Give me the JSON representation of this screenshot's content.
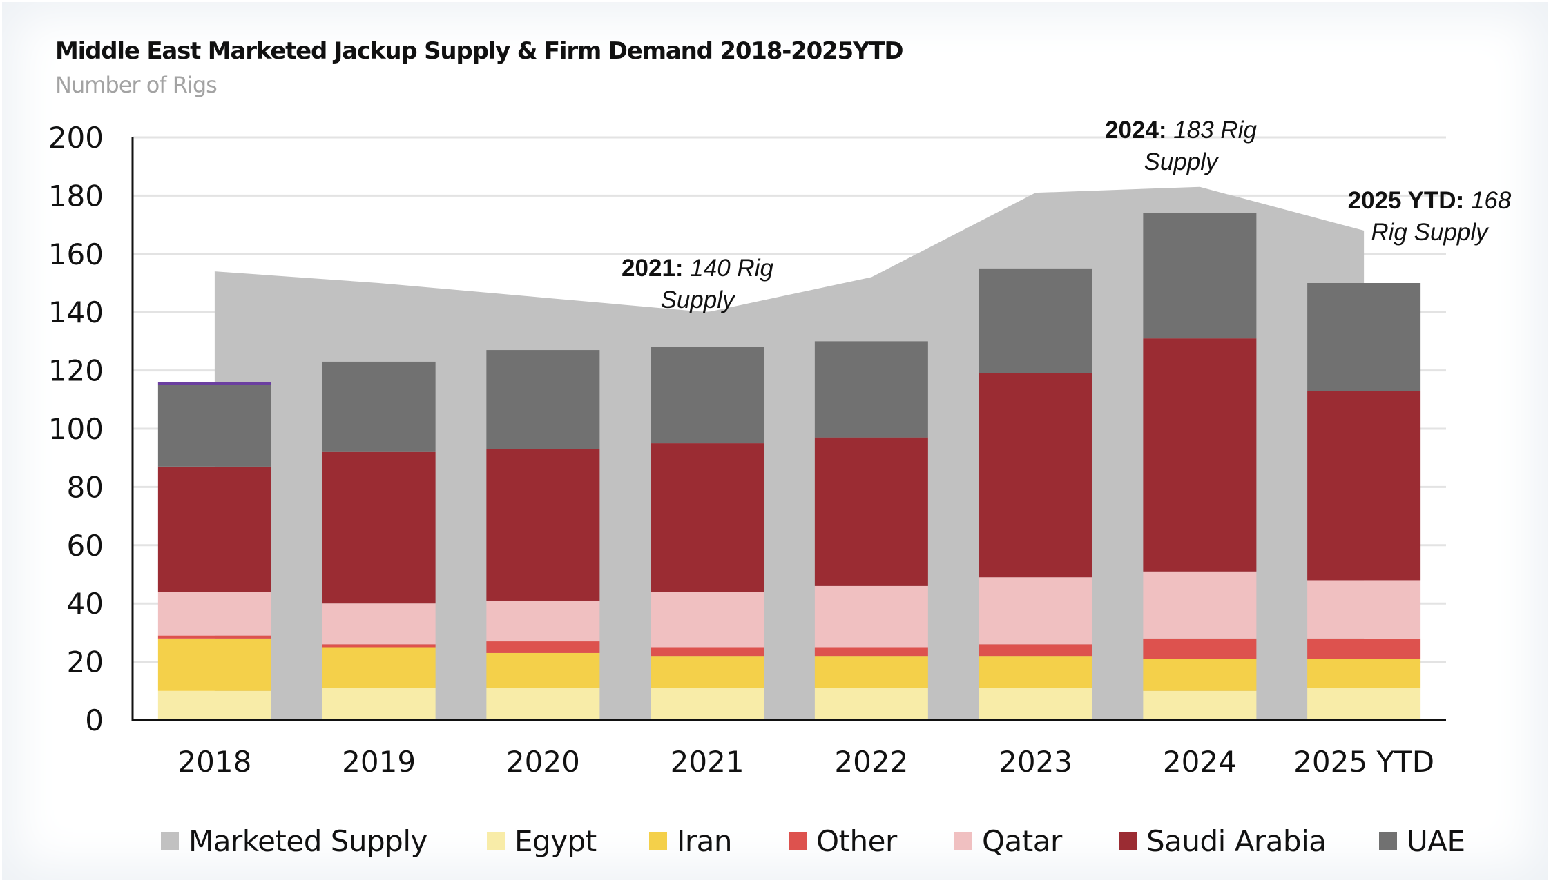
{
  "chart_data": {
    "type": "bar",
    "stacked": true,
    "title": "Middle East Marketed Jackup Supply & Firm Demand 2018-2025YTD",
    "subtitle": "Number of Rigs",
    "xlabel": "",
    "ylabel": "Number of Rigs",
    "ylim": [
      0,
      200
    ],
    "yticks": [
      0,
      20,
      40,
      60,
      80,
      100,
      120,
      140,
      160,
      180,
      200
    ],
    "grid": true,
    "legend_position": "bottom",
    "categories": [
      "2018",
      "2019",
      "2020",
      "2021",
      "2022",
      "2023",
      "2024",
      "2025 YTD"
    ],
    "area_series": {
      "name": "Marketed Supply",
      "color": "#c1c1c1",
      "values": [
        154,
        150,
        145,
        140,
        152,
        181,
        183,
        168
      ]
    },
    "series": [
      {
        "name": "Egypt",
        "color": "#f8eca8",
        "values": [
          10,
          11,
          11,
          11,
          11,
          11,
          10,
          11
        ]
      },
      {
        "name": "Iran",
        "color": "#f4d04a",
        "values": [
          18,
          14,
          12,
          11,
          11,
          11,
          11,
          10
        ]
      },
      {
        "name": "Other",
        "color": "#dd524e",
        "values": [
          1,
          1,
          4,
          3,
          3,
          4,
          7,
          7
        ]
      },
      {
        "name": "Qatar",
        "color": "#f0c0c1",
        "values": [
          15,
          14,
          14,
          19,
          21,
          23,
          23,
          20
        ]
      },
      {
        "name": "Saudi Arabia",
        "color": "#9b2c33",
        "values": [
          43,
          52,
          52,
          51,
          51,
          70,
          80,
          65
        ]
      },
      {
        "name": "UAE",
        "color": "#717171",
        "values": [
          28,
          31,
          34,
          33,
          33,
          36,
          43,
          37
        ]
      },
      {
        "name": "",
        "color": "#6b3fa0",
        "values": [
          1,
          0,
          0,
          0,
          0,
          0,
          0,
          0
        ],
        "in_legend": false
      }
    ],
    "annotations": [
      {
        "category": "2021",
        "bold": "2021:",
        "italic_line1": "140 Rig",
        "italic_line2": "Supply"
      },
      {
        "category": "2024",
        "bold": "2024:",
        "italic_line1": "183 Rig",
        "italic_line2": "Supply"
      },
      {
        "category": "2025 YTD",
        "bold": "2025 YTD:",
        "italic_line1": "168",
        "italic_line2": "Rig Supply"
      }
    ]
  },
  "legend": [
    {
      "label": "Marketed Supply",
      "color": "#c1c1c1"
    },
    {
      "label": "Egypt",
      "color": "#f8eca8"
    },
    {
      "label": "Iran",
      "color": "#f4d04a"
    },
    {
      "label": "Other",
      "color": "#dd524e"
    },
    {
      "label": "Qatar",
      "color": "#f0c0c1"
    },
    {
      "label": "Saudi Arabia",
      "color": "#9b2c33"
    },
    {
      "label": "UAE",
      "color": "#717171"
    }
  ],
  "colors": {
    "gridline": "#e3e3e3",
    "axis": "#111111",
    "subtitle": "#a3a3a3"
  }
}
